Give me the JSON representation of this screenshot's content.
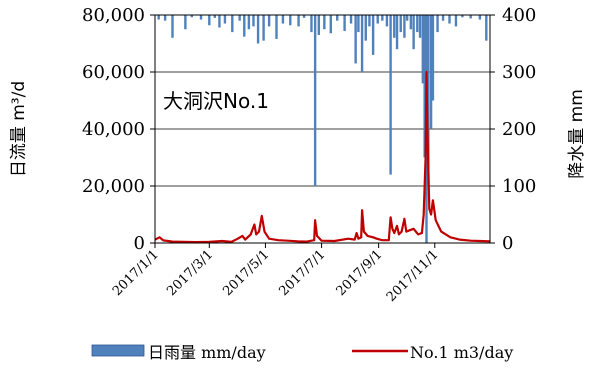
{
  "chart_data": {
    "type": "bar+line",
    "title": "大洞沢No.1",
    "ylabel_left": "日流量 m³/d",
    "ylabel_right": "降水量 mm",
    "ylim_left": [
      0,
      80000
    ],
    "ylim_right": [
      400,
      0
    ],
    "yticks_left": [
      "0",
      "20,000",
      "40,000",
      "60,000",
      "80,000"
    ],
    "yticks_right": [
      "400",
      "300",
      "200",
      "100",
      "0"
    ],
    "xlim": [
      "2017-01-01",
      "2017-12-31"
    ],
    "xticks": [
      "2017/1/1",
      "2017/3/1",
      "2017/5/1",
      "2017/7/1",
      "2017/9/1",
      "2017/11/1"
    ],
    "grid": "horizontal",
    "legend_position": "bottom",
    "series": [
      {
        "name": "日雨量 mm/day",
        "type": "bar",
        "axis": "right",
        "color": "#4f81bd",
        "points": [
          [
            "2017-01-05",
            8
          ],
          [
            "2017-01-12",
            10
          ],
          [
            "2017-01-20",
            40
          ],
          [
            "2017-02-03",
            25
          ],
          [
            "2017-02-10",
            4
          ],
          [
            "2017-02-20",
            8
          ],
          [
            "2017-03-01",
            18
          ],
          [
            "2017-03-07",
            5
          ],
          [
            "2017-03-12",
            22
          ],
          [
            "2017-03-18",
            15
          ],
          [
            "2017-03-26",
            30
          ],
          [
            "2017-04-03",
            10
          ],
          [
            "2017-04-08",
            38
          ],
          [
            "2017-04-13",
            25
          ],
          [
            "2017-04-18",
            20
          ],
          [
            "2017-04-23",
            50
          ],
          [
            "2017-04-29",
            45
          ],
          [
            "2017-05-05",
            20
          ],
          [
            "2017-05-13",
            42
          ],
          [
            "2017-05-20",
            15
          ],
          [
            "2017-05-28",
            18
          ],
          [
            "2017-06-06",
            20
          ],
          [
            "2017-06-12",
            5
          ],
          [
            "2017-06-20",
            30
          ],
          [
            "2017-06-24",
            300
          ],
          [
            "2017-06-28",
            35
          ],
          [
            "2017-07-04",
            25
          ],
          [
            "2017-07-11",
            32
          ],
          [
            "2017-07-18",
            10
          ],
          [
            "2017-07-26",
            28
          ],
          [
            "2017-08-02",
            15
          ],
          [
            "2017-08-07",
            85
          ],
          [
            "2017-08-10",
            30
          ],
          [
            "2017-08-14",
            100
          ],
          [
            "2017-08-18",
            45
          ],
          [
            "2017-08-22",
            20
          ],
          [
            "2017-08-26",
            70
          ],
          [
            "2017-08-31",
            15
          ],
          [
            "2017-09-05",
            10
          ],
          [
            "2017-09-10",
            20
          ],
          [
            "2017-09-14",
            280
          ],
          [
            "2017-09-18",
            40
          ],
          [
            "2017-09-21",
            60
          ],
          [
            "2017-09-25",
            30
          ],
          [
            "2017-09-29",
            40
          ],
          [
            "2017-10-02",
            10
          ],
          [
            "2017-10-06",
            25
          ],
          [
            "2017-10-09",
            60
          ],
          [
            "2017-10-13",
            30
          ],
          [
            "2017-10-16",
            40
          ],
          [
            "2017-10-19",
            120
          ],
          [
            "2017-10-21",
            250
          ],
          [
            "2017-10-23",
            400
          ],
          [
            "2017-10-25",
            300
          ],
          [
            "2017-10-28",
            200
          ],
          [
            "2017-10-30",
            150
          ],
          [
            "2017-11-04",
            30
          ],
          [
            "2017-11-10",
            10
          ],
          [
            "2017-11-17",
            15
          ],
          [
            "2017-11-24",
            20
          ],
          [
            "2017-12-01",
            4
          ],
          [
            "2017-12-10",
            6
          ],
          [
            "2017-12-20",
            8
          ],
          [
            "2017-12-27",
            45
          ]
        ]
      },
      {
        "name": "No.1 m3/day",
        "type": "line",
        "axis": "left",
        "color": "#c00000",
        "points": [
          [
            "2017-01-01",
            1200
          ],
          [
            "2017-01-06",
            2000
          ],
          [
            "2017-01-10",
            900
          ],
          [
            "2017-01-20",
            500
          ],
          [
            "2017-02-01",
            400
          ],
          [
            "2017-02-15",
            300
          ],
          [
            "2017-03-01",
            400
          ],
          [
            "2017-03-15",
            700
          ],
          [
            "2017-03-25",
            400
          ],
          [
            "2017-04-01",
            1500
          ],
          [
            "2017-04-06",
            2500
          ],
          [
            "2017-04-09",
            1200
          ],
          [
            "2017-04-15",
            3000
          ],
          [
            "2017-04-19",
            6500
          ],
          [
            "2017-04-21",
            3000
          ],
          [
            "2017-04-24",
            4000
          ],
          [
            "2017-04-27",
            9500
          ],
          [
            "2017-04-30",
            4000
          ],
          [
            "2017-05-05",
            1500
          ],
          [
            "2017-05-15",
            1000
          ],
          [
            "2017-05-25",
            800
          ],
          [
            "2017-06-05",
            600
          ],
          [
            "2017-06-15",
            500
          ],
          [
            "2017-06-23",
            1000
          ],
          [
            "2017-06-24",
            8000
          ],
          [
            "2017-06-26",
            2500
          ],
          [
            "2017-07-01",
            800
          ],
          [
            "2017-07-15",
            700
          ],
          [
            "2017-07-30",
            1500
          ],
          [
            "2017-08-06",
            1200
          ],
          [
            "2017-08-08",
            3500
          ],
          [
            "2017-08-10",
            1500
          ],
          [
            "2017-08-13",
            2000
          ],
          [
            "2017-08-14",
            11500
          ],
          [
            "2017-08-16",
            4000
          ],
          [
            "2017-08-20",
            2500
          ],
          [
            "2017-08-26",
            2000
          ],
          [
            "2017-08-30",
            1500
          ],
          [
            "2017-09-05",
            1000
          ],
          [
            "2017-09-12",
            1000
          ],
          [
            "2017-09-14",
            9000
          ],
          [
            "2017-09-16",
            5000
          ],
          [
            "2017-09-18",
            3500
          ],
          [
            "2017-09-21",
            6000
          ],
          [
            "2017-09-23",
            3000
          ],
          [
            "2017-09-26",
            4000
          ],
          [
            "2017-09-29",
            8500
          ],
          [
            "2017-10-01",
            4000
          ],
          [
            "2017-10-05",
            4500
          ],
          [
            "2017-10-09",
            5000
          ],
          [
            "2017-10-14",
            3000
          ],
          [
            "2017-10-18",
            3500
          ],
          [
            "2017-10-20",
            10000
          ],
          [
            "2017-10-22",
            30000
          ],
          [
            "2017-10-23",
            60000
          ],
          [
            "2017-10-24",
            40000
          ],
          [
            "2017-10-26",
            12000
          ],
          [
            "2017-10-28",
            10000
          ],
          [
            "2017-10-30",
            15000
          ],
          [
            "2017-11-02",
            8000
          ],
          [
            "2017-11-08",
            4000
          ],
          [
            "2017-11-18",
            2000
          ],
          [
            "2017-11-28",
            1200
          ],
          [
            "2017-12-10",
            800
          ],
          [
            "2017-12-20",
            700
          ],
          [
            "2017-12-31",
            600
          ]
        ]
      }
    ]
  }
}
